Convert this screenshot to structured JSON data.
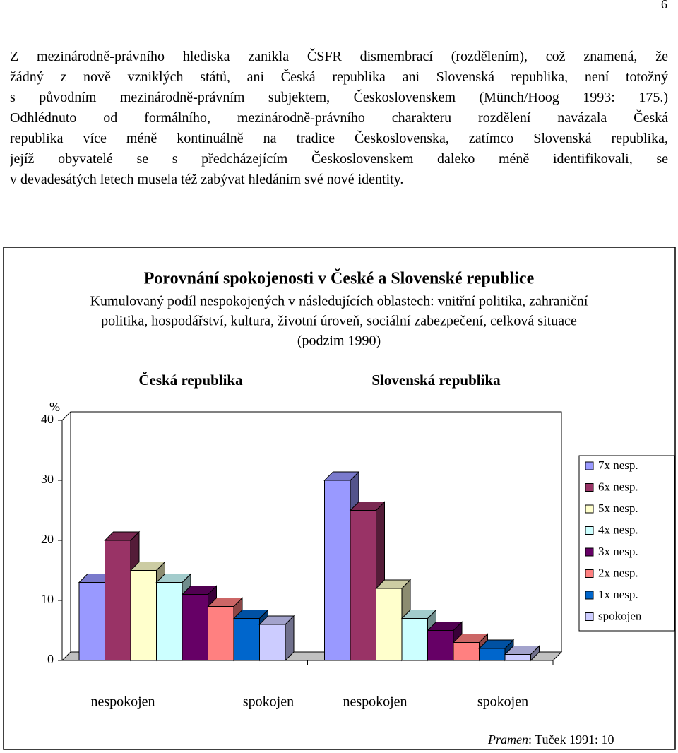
{
  "page_number": "6",
  "paragraph": [
    "Z mezinárodně-právního hlediska zanikla ČSFR dismembrací (rozdělením), což znamená, že",
    "žádný z nově vzniklých států, ani Česká republika ani Slovenská republika, není totožný",
    "s původním mezinárodně-právním subjektem, Československem (Münch/Hoog 1993: 175.)",
    "Odhlédnuto od formálního, mezinárodně-právního charakteru rozdělení navázala Česká",
    "republika více méně kontinuálně na tradice Československa, zatímco Slovenská republika,",
    "jejíž obyvatelé se s předcházejícím Československem daleko méně identifikovali, se",
    "v devadesátých letech musela též zabývat hledáním své nové identity."
  ],
  "chart_data": {
    "type": "bar",
    "title": "Porovnání spokojenosti v České a Slovenské republice",
    "subtitle": [
      "Kumulovaný podíl nespokojených v následujících oblastech: vnitřní politika, zahraniční",
      "politika, hospodářství, kultura, životní úroveň, sociální zabezpečení, celková situace",
      "(podzim 1990)"
    ],
    "categories": [
      "Česká republika",
      "Slovenská republika"
    ],
    "ylabel": "%",
    "ylim": [
      0,
      40
    ],
    "yticks": [
      0,
      10,
      20,
      30,
      40
    ],
    "grid": false,
    "x_end_labels": [
      "nespokojen",
      "spokojen",
      "nespokojen",
      "spokojen"
    ],
    "series": [
      {
        "name": "7x nesp.",
        "color": "#9999ff",
        "values": [
          13,
          30
        ]
      },
      {
        "name": "6x nesp.",
        "color": "#993366",
        "values": [
          20,
          25
        ]
      },
      {
        "name": "5x nesp.",
        "color": "#ffffcc",
        "values": [
          15,
          12
        ]
      },
      {
        "name": "4x nesp.",
        "color": "#ccffff",
        "values": [
          13,
          7
        ]
      },
      {
        "name": "3x nesp.",
        "color": "#660066",
        "values": [
          11,
          5
        ]
      },
      {
        "name": "2x nesp.",
        "color": "#ff8080",
        "values": [
          9,
          3
        ]
      },
      {
        "name": "1x nesp.",
        "color": "#0066cc",
        "values": [
          7,
          2
        ]
      },
      {
        "name": "spokojen",
        "color": "#ccccff",
        "values": [
          6,
          1
        ]
      }
    ]
  },
  "source": {
    "label": "Pramen",
    "text": ": Tuček 1991: 10"
  }
}
